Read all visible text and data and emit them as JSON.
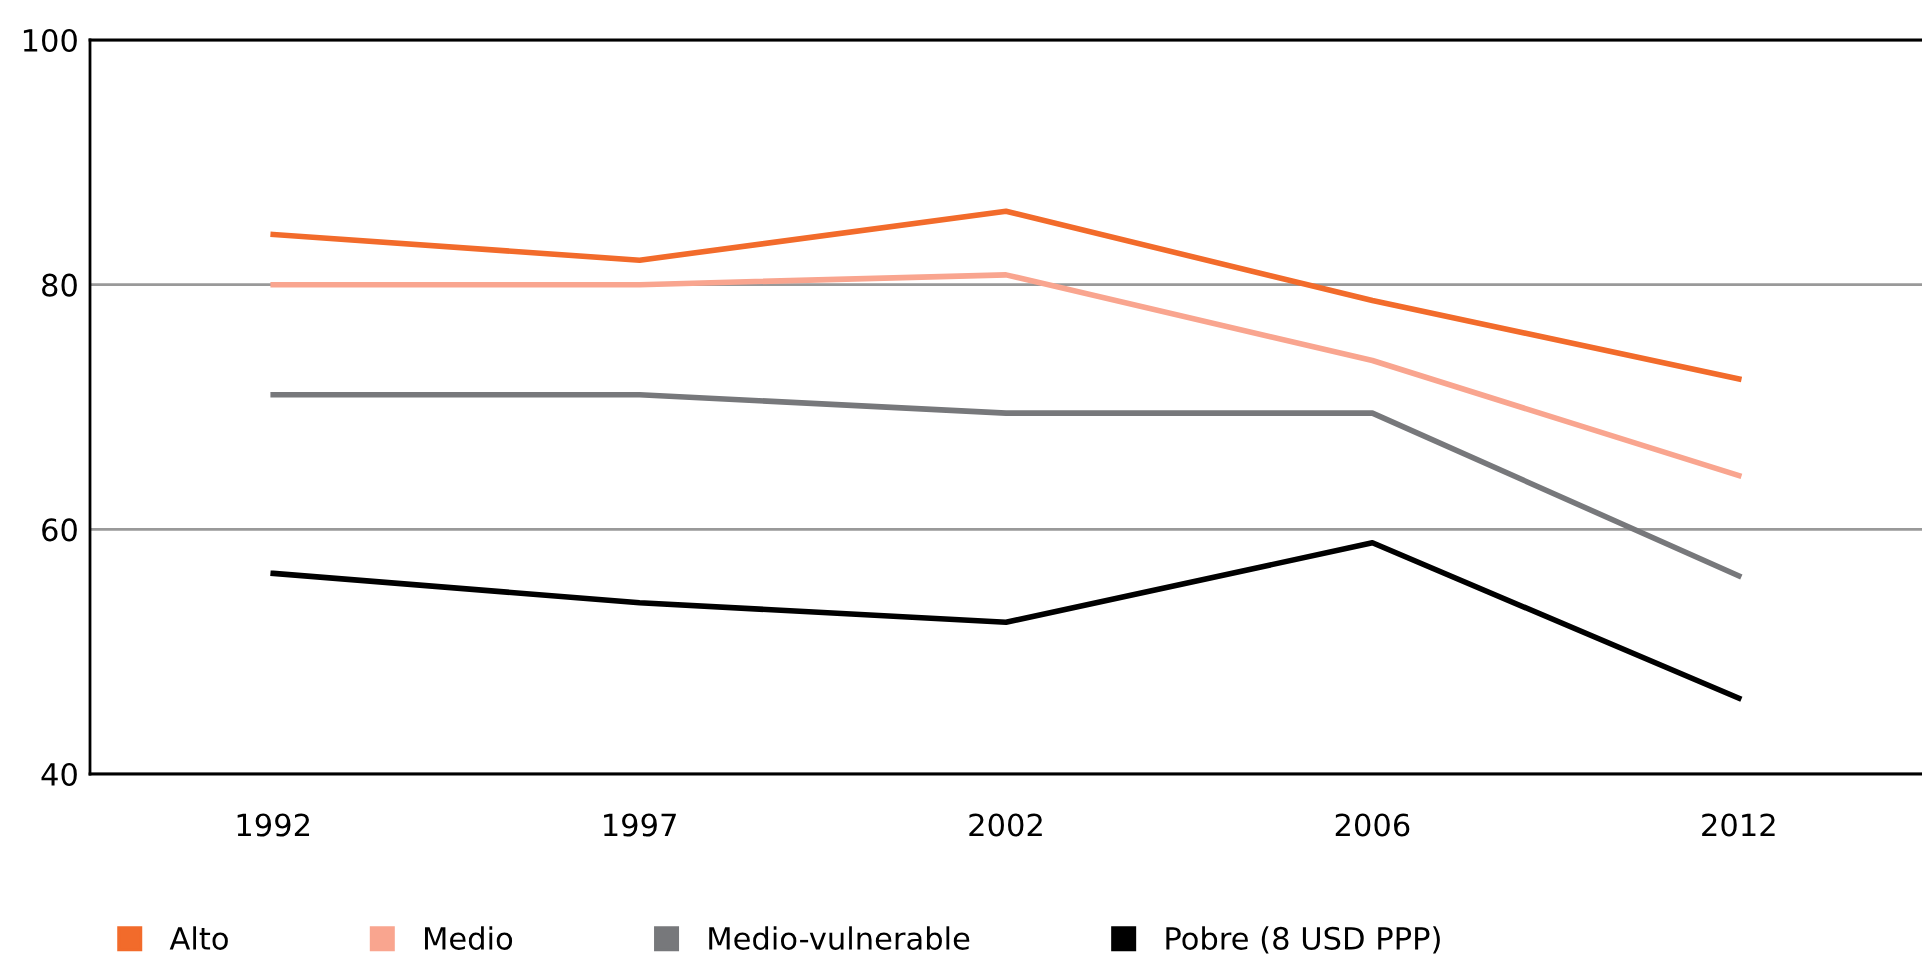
{
  "chart_data": {
    "type": "line",
    "categories": [
      "1992",
      "1997",
      "2002",
      "2006",
      "2012"
    ],
    "series": [
      {
        "name": "Alto",
        "color": "#f26b2b",
        "values": [
          84.1,
          82.0,
          86.0,
          78.7,
          72.3
        ]
      },
      {
        "name": "Medio",
        "color": "#f9a58f",
        "values": [
          80.0,
          80.0,
          80.8,
          73.8,
          64.4
        ]
      },
      {
        "name": "Medio-vulnerable",
        "color": "#77787b",
        "values": [
          71.0,
          71.0,
          69.5,
          69.5,
          56.2
        ]
      },
      {
        "name": "Pobre (8 USD PPP)",
        "color": "#000000",
        "values": [
          56.4,
          54.0,
          52.4,
          58.9,
          46.2
        ]
      }
    ],
    "ylim": [
      40,
      100
    ],
    "yticks": [
      40,
      60,
      80,
      100
    ],
    "grid": "y",
    "legend": "bottom",
    "marker": "none",
    "line_style": "solid"
  }
}
